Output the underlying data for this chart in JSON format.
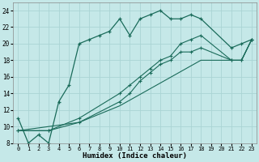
{
  "xlabel": "Humidex (Indice chaleur)",
  "background_color": "#c5e8e8",
  "grid_color": "#aad4d4",
  "line_color": "#1a6b5a",
  "xlim": [
    -0.5,
    23.5
  ],
  "ylim": [
    8,
    25
  ],
  "xticks": [
    0,
    1,
    2,
    3,
    4,
    5,
    6,
    7,
    8,
    9,
    10,
    11,
    12,
    13,
    14,
    15,
    16,
    17,
    18,
    19,
    20,
    21,
    22,
    23
  ],
  "yticks": [
    8,
    10,
    12,
    14,
    16,
    18,
    20,
    22,
    24
  ],
  "line1_x": [
    0,
    1,
    2,
    3,
    4,
    5,
    6,
    7,
    8,
    9,
    10,
    11,
    12,
    13,
    14,
    15,
    16,
    17,
    18,
    21,
    22,
    23
  ],
  "line1_y": [
    11,
    8,
    9,
    8,
    13,
    15,
    20,
    20.5,
    21,
    21.5,
    23,
    21,
    23,
    23.5,
    24,
    23,
    23,
    23.5,
    23,
    19.5,
    20,
    20.5
  ],
  "line2_x": [
    0,
    3,
    6,
    10,
    11,
    12,
    13,
    14,
    15,
    16,
    17,
    18,
    21,
    22,
    23
  ],
  "line2_y": [
    9.5,
    9.5,
    10.5,
    13,
    14,
    15.5,
    16.5,
    17.5,
    18,
    19,
    19,
    19.5,
    18,
    18,
    20.5
  ],
  "line3_x": [
    0,
    3,
    6,
    10,
    11,
    12,
    13,
    14,
    15,
    16,
    17,
    18,
    21,
    22,
    23
  ],
  "line3_y": [
    9.5,
    9.5,
    11,
    14,
    15,
    16,
    17,
    18,
    18.5,
    20,
    20.5,
    21,
    18,
    18,
    20.5
  ],
  "line4_x": [
    0,
    6,
    10,
    18,
    21,
    22,
    23
  ],
  "line4_y": [
    9.5,
    10.5,
    12.5,
    18,
    18,
    18,
    20.5
  ]
}
